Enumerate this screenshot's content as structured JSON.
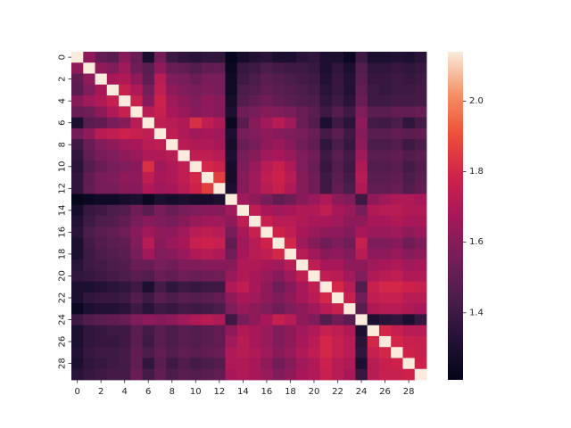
{
  "chart_data": {
    "type": "heatmap",
    "title": "",
    "xlabel": "",
    "ylabel": "",
    "x_tick_labels": [
      "0",
      "2",
      "4",
      "6",
      "8",
      "10",
      "12",
      "14",
      "16",
      "18",
      "20",
      "22",
      "24",
      "26",
      "28"
    ],
    "y_tick_labels": [
      "0",
      "2",
      "4",
      "6",
      "8",
      "10",
      "12",
      "14",
      "16",
      "18",
      "20",
      "22",
      "24",
      "26",
      "28"
    ],
    "colorbar": {
      "colormap": "rocket",
      "vmin": 1.21,
      "vmax": 2.14,
      "tick_values": [
        1.4,
        1.6,
        1.8,
        2.0
      ],
      "tick_labels": [
        "1.4",
        "1.6",
        "1.8",
        "2.0"
      ]
    },
    "grid": false,
    "values": [
      [
        2.14,
        1.62,
        1.5,
        1.48,
        1.6,
        1.52,
        1.3,
        1.55,
        1.4,
        1.36,
        1.34,
        1.36,
        1.36,
        1.22,
        1.28,
        1.32,
        1.34,
        1.3,
        1.3,
        1.34,
        1.36,
        1.3,
        1.3,
        1.24,
        1.4,
        1.3,
        1.3,
        1.32,
        1.3,
        1.34
      ],
      [
        1.62,
        2.14,
        1.62,
        1.58,
        1.66,
        1.54,
        1.48,
        1.62,
        1.52,
        1.5,
        1.46,
        1.5,
        1.5,
        1.24,
        1.38,
        1.4,
        1.44,
        1.42,
        1.4,
        1.4,
        1.38,
        1.3,
        1.36,
        1.3,
        1.46,
        1.36,
        1.36,
        1.38,
        1.36,
        1.38
      ],
      [
        1.5,
        1.62,
        2.14,
        1.68,
        1.7,
        1.62,
        1.5,
        1.72,
        1.58,
        1.56,
        1.52,
        1.56,
        1.56,
        1.26,
        1.4,
        1.44,
        1.48,
        1.46,
        1.44,
        1.42,
        1.4,
        1.32,
        1.38,
        1.32,
        1.48,
        1.38,
        1.38,
        1.4,
        1.38,
        1.4
      ],
      [
        1.48,
        1.58,
        1.68,
        2.14,
        1.76,
        1.7,
        1.56,
        1.74,
        1.62,
        1.58,
        1.56,
        1.58,
        1.56,
        1.26,
        1.44,
        1.46,
        1.5,
        1.48,
        1.46,
        1.44,
        1.42,
        1.34,
        1.38,
        1.32,
        1.5,
        1.4,
        1.38,
        1.4,
        1.4,
        1.42
      ],
      [
        1.6,
        1.66,
        1.7,
        1.76,
        2.14,
        1.76,
        1.6,
        1.78,
        1.66,
        1.62,
        1.58,
        1.62,
        1.6,
        1.28,
        1.46,
        1.5,
        1.54,
        1.5,
        1.48,
        1.46,
        1.44,
        1.36,
        1.4,
        1.34,
        1.52,
        1.4,
        1.4,
        1.42,
        1.42,
        1.42
      ],
      [
        1.52,
        1.54,
        1.62,
        1.7,
        1.76,
        2.14,
        1.72,
        1.76,
        1.68,
        1.64,
        1.6,
        1.62,
        1.6,
        1.3,
        1.54,
        1.56,
        1.6,
        1.58,
        1.56,
        1.52,
        1.48,
        1.4,
        1.46,
        1.4,
        1.58,
        1.48,
        1.48,
        1.5,
        1.5,
        1.52
      ],
      [
        1.3,
        1.48,
        1.5,
        1.56,
        1.6,
        1.72,
        2.14,
        1.74,
        1.72,
        1.7,
        1.82,
        1.74,
        1.7,
        1.24,
        1.48,
        1.6,
        1.66,
        1.72,
        1.66,
        1.52,
        1.46,
        1.3,
        1.4,
        1.34,
        1.62,
        1.42,
        1.4,
        1.44,
        1.36,
        1.42
      ],
      [
        1.55,
        1.62,
        1.72,
        1.74,
        1.78,
        1.76,
        1.74,
        2.14,
        1.74,
        1.7,
        1.66,
        1.68,
        1.66,
        1.3,
        1.56,
        1.58,
        1.62,
        1.6,
        1.58,
        1.56,
        1.52,
        1.42,
        1.48,
        1.4,
        1.6,
        1.48,
        1.48,
        1.5,
        1.48,
        1.5
      ],
      [
        1.4,
        1.52,
        1.58,
        1.62,
        1.66,
        1.68,
        1.72,
        1.74,
        2.14,
        1.72,
        1.7,
        1.7,
        1.68,
        1.28,
        1.52,
        1.56,
        1.62,
        1.64,
        1.6,
        1.54,
        1.5,
        1.36,
        1.44,
        1.38,
        1.62,
        1.44,
        1.44,
        1.46,
        1.4,
        1.44
      ],
      [
        1.36,
        1.5,
        1.56,
        1.58,
        1.62,
        1.64,
        1.7,
        1.7,
        1.72,
        2.14,
        1.74,
        1.74,
        1.72,
        1.3,
        1.56,
        1.6,
        1.66,
        1.68,
        1.64,
        1.58,
        1.54,
        1.4,
        1.48,
        1.42,
        1.66,
        1.48,
        1.48,
        1.5,
        1.46,
        1.48
      ],
      [
        1.34,
        1.46,
        1.52,
        1.56,
        1.58,
        1.6,
        1.82,
        1.66,
        1.7,
        1.74,
        2.14,
        1.8,
        1.78,
        1.28,
        1.58,
        1.64,
        1.72,
        1.76,
        1.7,
        1.58,
        1.52,
        1.38,
        1.46,
        1.4,
        1.7,
        1.46,
        1.46,
        1.48,
        1.42,
        1.46
      ],
      [
        1.36,
        1.5,
        1.56,
        1.58,
        1.62,
        1.62,
        1.74,
        1.68,
        1.7,
        1.74,
        1.8,
        2.14,
        1.86,
        1.28,
        1.6,
        1.66,
        1.74,
        1.78,
        1.72,
        1.6,
        1.54,
        1.4,
        1.48,
        1.42,
        1.72,
        1.48,
        1.48,
        1.5,
        1.44,
        1.48
      ],
      [
        1.36,
        1.5,
        1.56,
        1.56,
        1.6,
        1.6,
        1.7,
        1.66,
        1.68,
        1.72,
        1.78,
        1.86,
        2.14,
        1.3,
        1.6,
        1.66,
        1.72,
        1.76,
        1.7,
        1.6,
        1.54,
        1.4,
        1.5,
        1.44,
        1.7,
        1.5,
        1.5,
        1.52,
        1.46,
        1.5
      ],
      [
        1.22,
        1.24,
        1.26,
        1.26,
        1.28,
        1.3,
        1.24,
        1.3,
        1.28,
        1.3,
        1.28,
        1.28,
        1.3,
        2.14,
        1.66,
        1.62,
        1.56,
        1.5,
        1.54,
        1.6,
        1.64,
        1.7,
        1.62,
        1.58,
        1.4,
        1.62,
        1.66,
        1.7,
        1.7,
        1.68
      ],
      [
        1.28,
        1.38,
        1.4,
        1.44,
        1.46,
        1.54,
        1.48,
        1.56,
        1.52,
        1.56,
        1.58,
        1.6,
        1.6,
        1.66,
        2.14,
        1.74,
        1.68,
        1.66,
        1.68,
        1.7,
        1.7,
        1.74,
        1.68,
        1.64,
        1.56,
        1.7,
        1.72,
        1.72,
        1.7,
        1.7
      ],
      [
        1.32,
        1.4,
        1.44,
        1.46,
        1.5,
        1.56,
        1.6,
        1.58,
        1.56,
        1.6,
        1.64,
        1.66,
        1.66,
        1.62,
        1.74,
        2.14,
        1.76,
        1.72,
        1.72,
        1.7,
        1.68,
        1.68,
        1.66,
        1.62,
        1.62,
        1.68,
        1.68,
        1.7,
        1.68,
        1.68
      ],
      [
        1.34,
        1.44,
        1.48,
        1.5,
        1.54,
        1.6,
        1.66,
        1.62,
        1.62,
        1.66,
        1.72,
        1.74,
        1.72,
        1.56,
        1.68,
        1.76,
        2.14,
        1.78,
        1.74,
        1.68,
        1.64,
        1.62,
        1.62,
        1.58,
        1.68,
        1.64,
        1.64,
        1.66,
        1.62,
        1.64
      ],
      [
        1.3,
        1.42,
        1.46,
        1.48,
        1.5,
        1.58,
        1.72,
        1.6,
        1.64,
        1.68,
        1.76,
        1.78,
        1.76,
        1.5,
        1.66,
        1.72,
        1.78,
        2.14,
        1.8,
        1.66,
        1.6,
        1.54,
        1.58,
        1.54,
        1.76,
        1.58,
        1.58,
        1.6,
        1.54,
        1.58
      ],
      [
        1.3,
        1.4,
        1.44,
        1.46,
        1.48,
        1.56,
        1.66,
        1.58,
        1.6,
        1.64,
        1.7,
        1.72,
        1.7,
        1.54,
        1.68,
        1.72,
        1.74,
        1.8,
        2.14,
        1.72,
        1.66,
        1.6,
        1.62,
        1.58,
        1.72,
        1.62,
        1.62,
        1.64,
        1.6,
        1.62
      ],
      [
        1.34,
        1.4,
        1.42,
        1.44,
        1.46,
        1.52,
        1.52,
        1.56,
        1.54,
        1.58,
        1.58,
        1.6,
        1.6,
        1.6,
        1.7,
        1.7,
        1.68,
        1.66,
        1.72,
        2.14,
        1.74,
        1.68,
        1.68,
        1.62,
        1.62,
        1.66,
        1.68,
        1.7,
        1.66,
        1.68
      ],
      [
        1.36,
        1.38,
        1.4,
        1.42,
        1.44,
        1.48,
        1.46,
        1.52,
        1.5,
        1.54,
        1.52,
        1.54,
        1.54,
        1.64,
        1.7,
        1.68,
        1.64,
        1.6,
        1.66,
        1.74,
        2.14,
        1.74,
        1.72,
        1.66,
        1.58,
        1.7,
        1.72,
        1.74,
        1.7,
        1.7
      ],
      [
        1.3,
        1.3,
        1.32,
        1.34,
        1.36,
        1.4,
        1.3,
        1.42,
        1.36,
        1.4,
        1.38,
        1.4,
        1.4,
        1.7,
        1.74,
        1.68,
        1.62,
        1.54,
        1.6,
        1.68,
        1.74,
        2.14,
        1.8,
        1.72,
        1.46,
        1.76,
        1.8,
        1.8,
        1.78,
        1.76
      ],
      [
        1.3,
        1.36,
        1.38,
        1.38,
        1.4,
        1.46,
        1.4,
        1.48,
        1.44,
        1.48,
        1.46,
        1.48,
        1.5,
        1.62,
        1.68,
        1.66,
        1.62,
        1.58,
        1.62,
        1.68,
        1.72,
        1.8,
        2.14,
        1.76,
        1.54,
        1.74,
        1.76,
        1.76,
        1.72,
        1.72
      ],
      [
        1.24,
        1.3,
        1.32,
        1.32,
        1.34,
        1.4,
        1.34,
        1.4,
        1.38,
        1.42,
        1.4,
        1.42,
        1.44,
        1.58,
        1.64,
        1.62,
        1.58,
        1.54,
        1.58,
        1.62,
        1.66,
        1.72,
        1.76,
        2.14,
        1.48,
        1.7,
        1.72,
        1.72,
        1.7,
        1.68
      ],
      [
        1.4,
        1.46,
        1.48,
        1.5,
        1.52,
        1.58,
        1.62,
        1.6,
        1.62,
        1.66,
        1.7,
        1.72,
        1.7,
        1.4,
        1.56,
        1.62,
        1.68,
        1.76,
        1.72,
        1.62,
        1.58,
        1.46,
        1.54,
        1.48,
        2.14,
        1.3,
        1.34,
        1.36,
        1.3,
        1.38
      ],
      [
        1.3,
        1.36,
        1.38,
        1.4,
        1.4,
        1.48,
        1.42,
        1.48,
        1.44,
        1.48,
        1.46,
        1.48,
        1.5,
        1.62,
        1.7,
        1.68,
        1.64,
        1.58,
        1.62,
        1.66,
        1.7,
        1.76,
        1.74,
        1.7,
        1.3,
        2.14,
        1.8,
        1.76,
        1.72,
        1.72
      ],
      [
        1.3,
        1.36,
        1.38,
        1.38,
        1.4,
        1.48,
        1.4,
        1.48,
        1.44,
        1.48,
        1.46,
        1.48,
        1.5,
        1.66,
        1.72,
        1.68,
        1.64,
        1.58,
        1.62,
        1.68,
        1.72,
        1.8,
        1.76,
        1.72,
        1.34,
        1.8,
        2.14,
        1.8,
        1.76,
        1.76
      ],
      [
        1.32,
        1.38,
        1.4,
        1.4,
        1.42,
        1.5,
        1.44,
        1.5,
        1.46,
        1.5,
        1.48,
        1.5,
        1.52,
        1.7,
        1.72,
        1.7,
        1.66,
        1.6,
        1.64,
        1.7,
        1.74,
        1.8,
        1.76,
        1.72,
        1.36,
        1.76,
        1.8,
        2.14,
        1.78,
        1.76
      ],
      [
        1.3,
        1.36,
        1.38,
        1.4,
        1.42,
        1.5,
        1.36,
        1.48,
        1.4,
        1.46,
        1.42,
        1.44,
        1.46,
        1.7,
        1.7,
        1.68,
        1.62,
        1.54,
        1.6,
        1.66,
        1.7,
        1.78,
        1.72,
        1.7,
        1.3,
        1.72,
        1.76,
        1.78,
        2.14,
        1.78
      ],
      [
        1.34,
        1.38,
        1.4,
        1.42,
        1.42,
        1.52,
        1.42,
        1.5,
        1.44,
        1.48,
        1.46,
        1.48,
        1.5,
        1.68,
        1.7,
        1.68,
        1.64,
        1.58,
        1.62,
        1.68,
        1.7,
        1.76,
        1.72,
        1.68,
        1.38,
        1.72,
        1.76,
        1.76,
        1.78,
        2.14
      ]
    ]
  }
}
